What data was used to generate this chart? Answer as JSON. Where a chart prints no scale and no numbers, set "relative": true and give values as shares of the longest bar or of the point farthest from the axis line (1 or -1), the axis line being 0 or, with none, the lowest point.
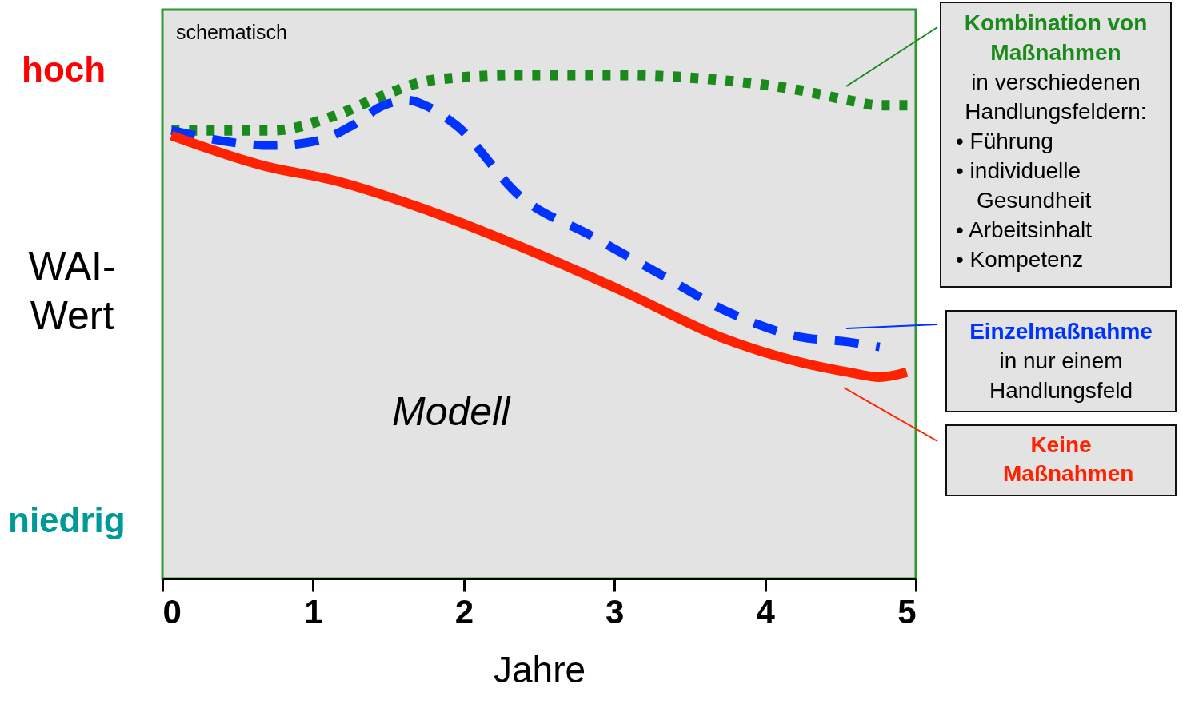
{
  "chart_data": {
    "type": "line",
    "relative": true,
    "xlabel": "Jahre",
    "ylabel": "WAI-Wert",
    "xlim": [
      0,
      5
    ],
    "xticks": [
      0,
      1,
      2,
      3,
      4,
      5
    ],
    "grid": false,
    "legend": "right",
    "annotations": [
      "schematisch",
      "Modell",
      "hoch",
      "niedrig",
      "in verschiedenen Handlungsfeldern:",
      "• Führung",
      "• individuelle Gesundheit",
      "• Arbeitsinhalt",
      "• Kompetenz",
      "in nur einem Handlungsfeld"
    ],
    "series": [
      {
        "name": "Kombination von Maßnahmen",
        "color": "#1a8a1a",
        "line_style": "dotted",
        "x": [
          0.06,
          0.73,
          1.15,
          1.47,
          1.79,
          2.37,
          3.06,
          3.7,
          4.23,
          4.55,
          4.76,
          4.97
        ],
        "values": [
          0.89,
          0.89,
          0.92,
          0.96,
          0.99,
          1.0,
          1.0,
          0.99,
          0.97,
          0.95,
          0.94,
          0.94
        ]
      },
      {
        "name": "Einzelmaßnahme",
        "color": "#0033ff",
        "line_style": "dashed",
        "x": [
          0.06,
          0.73,
          1.04,
          1.26,
          1.47,
          1.63,
          1.74,
          1.95,
          2.37,
          2.85,
          3.33,
          3.75,
          4.23,
          4.55,
          4.76
        ],
        "values": [
          0.89,
          0.86,
          0.87,
          0.9,
          0.94,
          0.95,
          0.94,
          0.9,
          0.76,
          0.68,
          0.6,
          0.53,
          0.48,
          0.47,
          0.46
        ]
      },
      {
        "name": "Keine Maßnahmen",
        "color": "#ff2200",
        "line_style": "solid",
        "x": [
          0.06,
          0.67,
          1.15,
          1.68,
          2.37,
          3.06,
          3.7,
          4.23,
          4.55,
          4.76,
          4.94
        ],
        "values": [
          0.88,
          0.82,
          0.79,
          0.74,
          0.66,
          0.57,
          0.48,
          0.43,
          0.41,
          0.4,
          0.41
        ]
      }
    ]
  }
}
